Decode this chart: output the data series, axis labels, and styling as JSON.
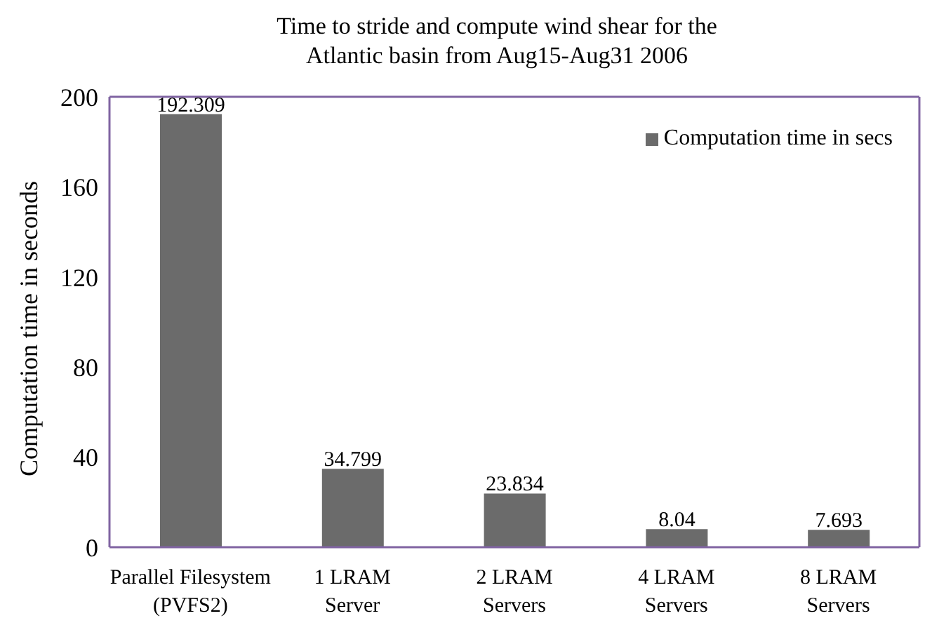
{
  "chart_data": {
    "type": "bar",
    "title": "Time to stride and compute wind shear for the Atlantic basin from Aug15-Aug31 2006",
    "ylabel": "Computation time in seconds",
    "categories": [
      "Parallel Filesystem\n(PVFS2)",
      "1 LRAM\nServer",
      "2 LRAM\nServers",
      "4 LRAM\nServers",
      "8 LRAM\nServers"
    ],
    "series": [
      {
        "name": "Computation time in secs",
        "color": "#6b6b6b",
        "values": [
          192.309,
          34.799,
          23.834,
          8.04,
          7.693
        ]
      }
    ],
    "ylim": [
      0,
      200
    ],
    "yticks": [
      0,
      40,
      80,
      120,
      160,
      200
    ],
    "grid": false,
    "legend": "top right",
    "data_labels": true
  }
}
